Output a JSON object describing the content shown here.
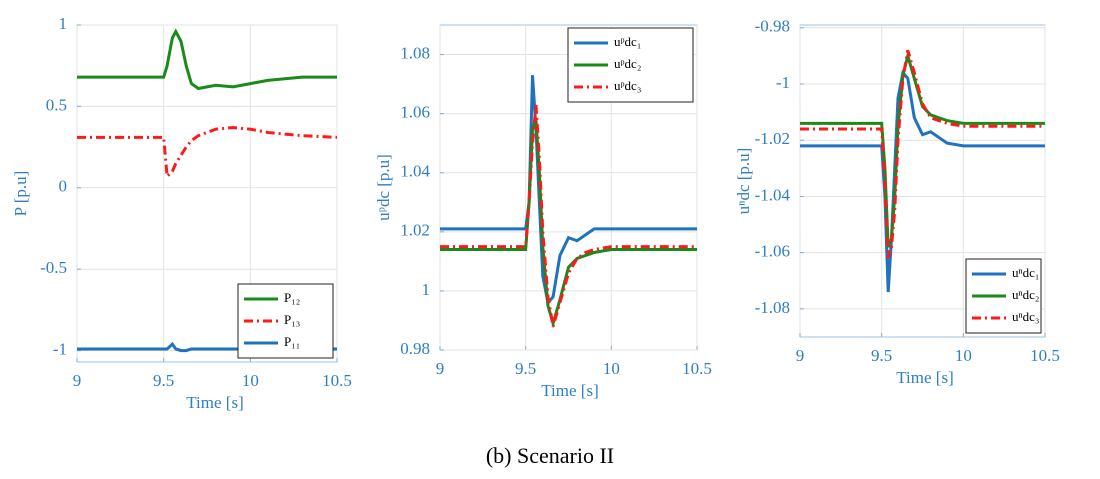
{
  "caption": "(b) Scenario II",
  "chart_data": [
    {
      "type": "line",
      "xlabel": "Time [s]",
      "ylabel": "P [p.u]",
      "xlim": [
        9,
        10.5
      ],
      "xticks": [
        9,
        9.5,
        10,
        10.5
      ],
      "ylim": [
        -1.07,
        1
      ],
      "yticks": [
        -1,
        -0.5,
        0,
        0.5,
        1
      ],
      "grid": true,
      "legend": "lower-right",
      "x": [
        9,
        9.5,
        9.52,
        9.55,
        9.57,
        9.6,
        9.63,
        9.66,
        9.7,
        9.8,
        9.9,
        10,
        10.1,
        10.2,
        10.3,
        10.5
      ],
      "series": [
        {
          "name": "P₁₂",
          "color": "#1a8a1a",
          "linestyle": "solid",
          "values": [
            0.68,
            0.68,
            0.75,
            0.92,
            0.96,
            0.9,
            0.75,
            0.64,
            0.61,
            0.63,
            0.62,
            0.64,
            0.66,
            0.67,
            0.68,
            0.68
          ]
        },
        {
          "name": "P₁₃",
          "color": "#ff1a1a",
          "linestyle": "dashdot",
          "values": [
            0.31,
            0.31,
            0.07,
            0.1,
            0.15,
            0.2,
            0.25,
            0.29,
            0.32,
            0.36,
            0.37,
            0.36,
            0.34,
            0.33,
            0.32,
            0.31
          ]
        },
        {
          "name": "P₁₁",
          "color": "#1f72bd",
          "linestyle": "solid",
          "values": [
            -0.99,
            -0.99,
            -0.99,
            -0.96,
            -0.99,
            -1.0,
            -1.0,
            -0.99,
            -0.99,
            -0.99,
            -0.99,
            -0.99,
            -0.99,
            -0.99,
            -0.99,
            -0.99
          ]
        }
      ]
    },
    {
      "type": "line",
      "xlabel": "Time [s]",
      "ylabel": "uᵖdc [p.u]",
      "xlim": [
        9,
        10.5
      ],
      "xticks": [
        9,
        9.5,
        10,
        10.5
      ],
      "ylim": [
        0.98,
        1.09
      ],
      "yticks": [
        0.98,
        1,
        1.02,
        1.04,
        1.06,
        1.08
      ],
      "grid": true,
      "legend": "upper-right",
      "x": [
        9,
        9.5,
        9.52,
        9.54,
        9.56,
        9.58,
        9.6,
        9.63,
        9.66,
        9.7,
        9.75,
        9.8,
        9.85,
        9.9,
        10,
        10.1,
        10.5
      ],
      "series": [
        {
          "name": "uᵖdc₁",
          "color": "#1f72bd",
          "linestyle": "solid",
          "values": [
            1.021,
            1.021,
            1.03,
            1.073,
            1.055,
            1.03,
            1.005,
            0.996,
            0.998,
            1.012,
            1.018,
            1.017,
            1.019,
            1.021,
            1.021,
            1.021,
            1.021
          ]
        },
        {
          "name": "uᵖdc₂",
          "color": "#1a8a1a",
          "linestyle": "solid",
          "values": [
            1.014,
            1.014,
            1.03,
            1.055,
            1.058,
            1.04,
            1.015,
            0.995,
            0.989,
            0.997,
            1.008,
            1.011,
            1.012,
            1.013,
            1.014,
            1.014,
            1.014
          ]
        },
        {
          "name": "uᵖdc₃",
          "color": "#ff1a1a",
          "linestyle": "dashdot",
          "values": [
            1.015,
            1.015,
            1.03,
            1.05,
            1.063,
            1.045,
            1.02,
            0.998,
            0.988,
            0.996,
            1.006,
            1.011,
            1.013,
            1.014,
            1.015,
            1.015,
            1.015
          ]
        }
      ]
    },
    {
      "type": "line",
      "xlabel": "Time [s]",
      "ylabel": "uⁿdc [p.u]",
      "xlim": [
        9,
        10.5
      ],
      "xticks": [
        9,
        9.5,
        10,
        10.5
      ],
      "ylim": [
        -1.09,
        -0.979
      ],
      "yticks": [
        -1.08,
        -1.06,
        -1.04,
        -1.02,
        -1,
        -0.98
      ],
      "grid": true,
      "legend": "lower-right",
      "x": [
        9,
        9.5,
        9.52,
        9.54,
        9.56,
        9.58,
        9.6,
        9.63,
        9.66,
        9.7,
        9.75,
        9.8,
        9.85,
        9.9,
        10,
        10.1,
        10.5
      ],
      "series": [
        {
          "name": "uⁿdc₁",
          "color": "#1f72bd",
          "linestyle": "solid",
          "values": [
            -1.022,
            -1.022,
            -1.04,
            -1.074,
            -1.055,
            -1.03,
            -1.005,
            -0.996,
            -0.998,
            -1.012,
            -1.018,
            -1.017,
            -1.019,
            -1.021,
            -1.022,
            -1.022,
            -1.022
          ]
        },
        {
          "name": "uⁿdc₂",
          "color": "#1a8a1a",
          "linestyle": "solid",
          "values": [
            -1.014,
            -1.014,
            -1.03,
            -1.058,
            -1.055,
            -1.04,
            -1.015,
            -0.997,
            -0.99,
            -0.998,
            -1.008,
            -1.011,
            -1.012,
            -1.013,
            -1.014,
            -1.014,
            -1.014
          ]
        },
        {
          "name": "uⁿdc₃",
          "color": "#ff1a1a",
          "linestyle": "dashdot",
          "values": [
            -1.016,
            -1.016,
            -1.035,
            -1.062,
            -1.058,
            -1.045,
            -1.02,
            -0.998,
            -0.988,
            -0.996,
            -1.007,
            -1.012,
            -1.013,
            -1.014,
            -1.015,
            -1.015,
            -1.015
          ]
        }
      ]
    }
  ]
}
